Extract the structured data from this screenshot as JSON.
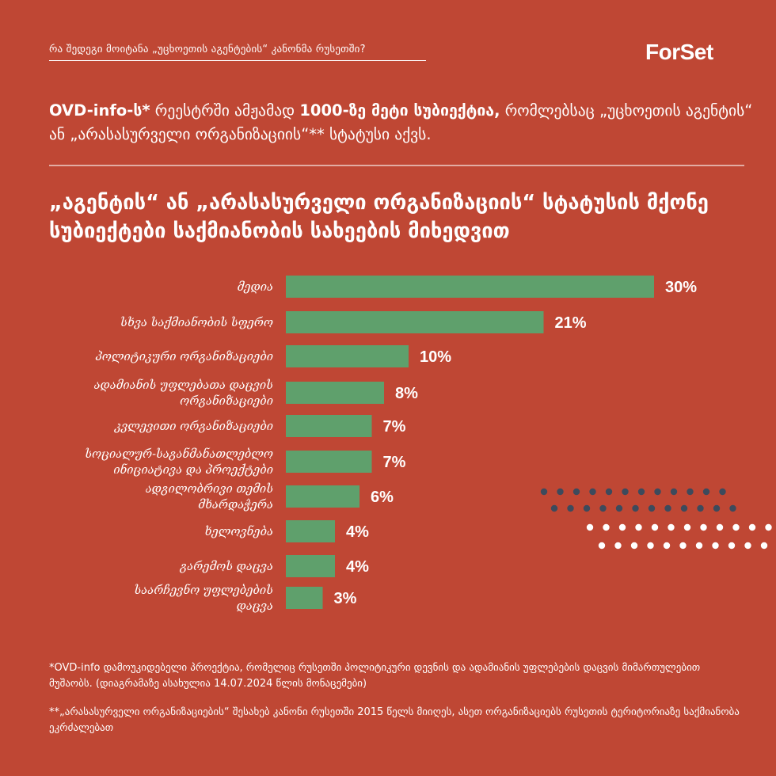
{
  "header": {
    "question": "რა შედეგი მოიტანა „უცხოეთის აგენტების“ კანონმა რუსეთში?",
    "logo_text": "ForSet"
  },
  "headline": {
    "bold1": "OVD-info-ს*",
    "text1": " რეესტრში ამჟამად ",
    "bold2": "1000-ზე მეტი სუბიექტია,",
    "text2": " რომლებსაც „უცხოეთის აგენტის“ ან „არასასურველი ორგანიზაციის“** სტატუსი აქვს."
  },
  "chart_data": {
    "type": "bar",
    "orientation": "horizontal",
    "title": "„აგენტის“ ან „არასასურველი ორგანიზაციის“ სტატუსის მქონე სუბიექტები საქმიანობის სახეების მიხედვით",
    "categories": [
      [
        "მედია"
      ],
      [
        "სხვა საქმიანობის სფერო"
      ],
      [
        "პოლიტიკური ორგანიზაციები"
      ],
      [
        "ადამიანის უფლებათა დაცვის",
        "ორგანიზაციები"
      ],
      [
        "კვლევითი ორგანიზაციები"
      ],
      [
        "სოციალურ-საგანმანათლებლო",
        "ინიციატივა და პროექტები"
      ],
      [
        "ადგილობრივი თემის",
        "მხარდაჭერა"
      ],
      [
        "ხელოვნება"
      ],
      [
        "გარემოს დაცვა"
      ],
      [
        "საარჩევნო უფლებების",
        "დაცვა"
      ]
    ],
    "values": [
      30,
      21,
      10,
      8,
      7,
      7,
      6,
      4,
      4,
      3
    ],
    "value_labels": [
      "30%",
      "21%",
      "10%",
      "8%",
      "7%",
      "7%",
      "6%",
      "4%",
      "4%",
      "3%"
    ],
    "bar_color": "#5fa06c"
  },
  "footnotes": {
    "fn1": "*OVD-info დამოუკიდებელი პროექტია, რომელიც რუსეთში პოლიტიკური დევნის და ადამიანის უფლებების დაცვის მიმართულებით მუშაობს. (დიაგრამაზე ასახულია 14.07.2024 წლის მონაცემები)",
    "fn2": "**„არასასურველი ორგანიზაციების“ შესახებ კანონი რუსეთში 2015 წელს მიიღეს, ასეთ ორგანიზაციებს რუსეთის ტერიტორიაზე საქმიანობა ეკრძალებათ"
  },
  "colors": {
    "background": "#bf4734",
    "text": "#ffffff",
    "bar": "#5fa06c",
    "dots_dark": "#3d4a5c",
    "dots_light": "#ffffff"
  }
}
